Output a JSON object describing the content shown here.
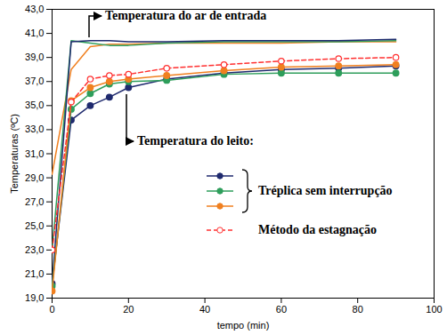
{
  "chart_data": {
    "type": "line",
    "x_label": "tempo (min)",
    "y_label": "Temperaturas (ºC)",
    "x": [
      0,
      5,
      10,
      15,
      20,
      30,
      45,
      60,
      75,
      90
    ],
    "xlim": [
      0,
      100
    ],
    "xticks": [
      0,
      20,
      40,
      60,
      80,
      100
    ],
    "ylim": [
      19,
      43
    ],
    "yticks": [
      {
        "value": 19,
        "label": "19,0"
      },
      {
        "value": 21,
        "label": "21,0"
      },
      {
        "value": 23,
        "label": "23,0"
      },
      {
        "value": 25,
        "label": "25,0"
      },
      {
        "value": 27,
        "label": "27,0"
      },
      {
        "value": 29,
        "label": "29,0"
      },
      {
        "value": 31,
        "label": "31,0"
      },
      {
        "value": 33,
        "label": "33,0"
      },
      {
        "value": 35,
        "label": "35,0"
      },
      {
        "value": 37,
        "label": "37,0"
      },
      {
        "value": 39,
        "label": "39,0"
      },
      {
        "value": 41,
        "label": "41,0"
      },
      {
        "value": 43,
        "label": "43,0"
      }
    ],
    "grid": false,
    "annotations": [
      "Temperatura do ar de entrada",
      "Temperatura do leito:",
      "Tréplica sem interrupção"
    ],
    "series": [
      {
        "color": "#f08020",
        "marker": "none",
        "line_style": "solid",
        "values": [
          29.3,
          38.0,
          39.9,
          40.1,
          40.1,
          40.2,
          40.2,
          40.2,
          40.3,
          40.3
        ]
      },
      {
        "color": "#2e9e5b",
        "marker": "none",
        "line_style": "solid",
        "values": [
          23.0,
          40.4,
          40.2,
          40.0,
          40.0,
          40.2,
          40.3,
          40.3,
          40.3,
          40.4
        ]
      },
      {
        "color": "#1f2a6e",
        "marker": "none",
        "line_style": "solid",
        "values": [
          20.2,
          40.3,
          40.4,
          40.4,
          40.3,
          40.3,
          40.4,
          40.4,
          40.4,
          40.5
        ]
      },
      {
        "color": "#1f2a6e",
        "marker": "circle",
        "line_style": "solid",
        "values": [
          20.2,
          33.8,
          35.0,
          35.7,
          36.5,
          37.2,
          37.7,
          38.0,
          38.1,
          38.3
        ]
      },
      {
        "color": "#2e9e5b",
        "marker": "circle",
        "line_style": "solid",
        "values": [
          20.0,
          34.7,
          36.0,
          36.8,
          37.0,
          37.1,
          37.6,
          37.7,
          37.7,
          37.7
        ]
      },
      {
        "color": "#f08020",
        "marker": "circle",
        "line_style": "solid",
        "values": [
          19.6,
          35.4,
          36.5,
          37.0,
          37.2,
          37.5,
          37.9,
          38.2,
          38.3,
          38.4
        ]
      },
      {
        "name": "Método da estagnação",
        "color": "#ff3030",
        "marker": "open_circle",
        "line_style": "dashed",
        "values": [
          23.0,
          35.3,
          37.2,
          37.5,
          37.6,
          38.1,
          38.4,
          38.7,
          38.9,
          39.0
        ]
      }
    ]
  }
}
